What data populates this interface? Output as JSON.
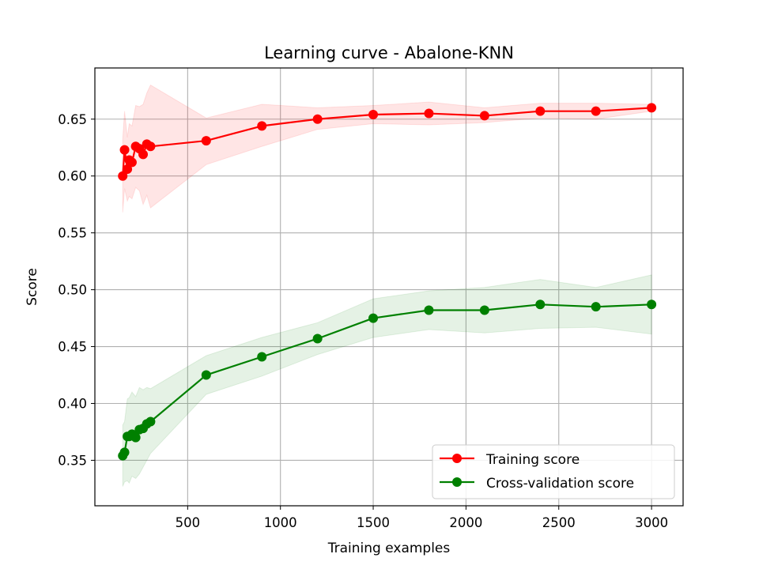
{
  "chart_data": {
    "type": "line",
    "title": "Learning curve - Abalone-KNN",
    "xlabel": "Training examples",
    "ylabel": "Score",
    "xlim": [
      0,
      3170
    ],
    "ylim": [
      0.31,
      0.695
    ],
    "xticks": [
      500,
      1000,
      1500,
      2000,
      2500,
      3000
    ],
    "yticks": [
      0.35,
      0.4,
      0.45,
      0.5,
      0.55,
      0.6,
      0.65
    ],
    "grid": true,
    "legend": {
      "position": "lower right",
      "entries": [
        "Training score",
        "Cross-validation score"
      ]
    },
    "x": [
      150,
      160,
      175,
      185,
      200,
      220,
      240,
      260,
      280,
      300,
      600,
      900,
      1200,
      1500,
      1800,
      2100,
      2400,
      2700,
      3000
    ],
    "series": [
      {
        "name": "Training score",
        "color": "#ff0000",
        "band_color": "#ff0000",
        "values": [
          0.6,
          0.623,
          0.606,
          0.614,
          0.612,
          0.626,
          0.624,
          0.619,
          0.628,
          0.626,
          0.631,
          0.644,
          0.65,
          0.654,
          0.655,
          0.653,
          0.657,
          0.657,
          0.66
        ],
        "lower": [
          0.568,
          0.589,
          0.578,
          0.582,
          0.58,
          0.59,
          0.587,
          0.575,
          0.583,
          0.572,
          0.61,
          0.626,
          0.641,
          0.646,
          0.645,
          0.647,
          0.651,
          0.65,
          0.657
        ],
        "upper": [
          0.632,
          0.657,
          0.634,
          0.646,
          0.644,
          0.662,
          0.661,
          0.663,
          0.673,
          0.68,
          0.651,
          0.663,
          0.66,
          0.662,
          0.665,
          0.66,
          0.664,
          0.664,
          0.663
        ]
      },
      {
        "name": "Cross-validation score",
        "color": "#008000",
        "band_color": "#008000",
        "values": [
          0.354,
          0.357,
          0.371,
          0.371,
          0.373,
          0.37,
          0.377,
          0.378,
          0.382,
          0.384,
          0.425,
          0.441,
          0.457,
          0.475,
          0.482,
          0.482,
          0.487,
          0.485,
          0.487
        ],
        "lower": [
          0.327,
          0.331,
          0.332,
          0.33,
          0.336,
          0.334,
          0.338,
          0.344,
          0.35,
          0.356,
          0.408,
          0.424,
          0.443,
          0.458,
          0.465,
          0.462,
          0.466,
          0.467,
          0.461
        ],
        "upper": [
          0.381,
          0.384,
          0.404,
          0.405,
          0.41,
          0.406,
          0.414,
          0.412,
          0.414,
          0.413,
          0.442,
          0.458,
          0.471,
          0.492,
          0.499,
          0.502,
          0.509,
          0.502,
          0.513
        ]
      }
    ]
  }
}
